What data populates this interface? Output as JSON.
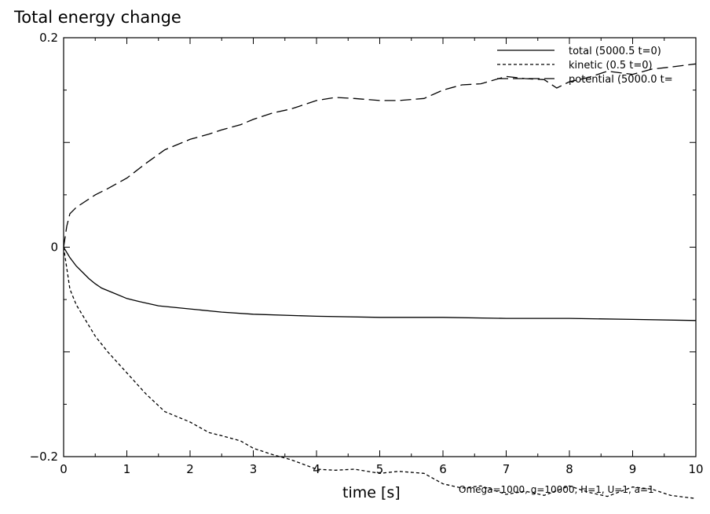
{
  "chart_data": {
    "type": "line",
    "title": "Total energy change",
    "xlabel": "time [s]",
    "ylabel": "",
    "xlim": [
      0,
      10
    ],
    "ylim": [
      -0.2,
      0.2
    ],
    "x_ticks": [
      "0",
      "1",
      "2",
      "3",
      "4",
      "5",
      "6",
      "7",
      "8",
      "9",
      "10"
    ],
    "y_ticks": [
      "-0.2",
      "0",
      "0.2"
    ],
    "y_tick_values": [
      -0.2,
      0,
      0.2
    ],
    "footnote": "Omega=1000, g=10000, H=1, U=1, a=1",
    "legend_position": "top-right",
    "grid": false,
    "series": [
      {
        "name": "total (5000.5 t=0)",
        "dash": "solid",
        "x": [
          0,
          0.1,
          0.2,
          0.3,
          0.4,
          0.5,
          0.6,
          0.8,
          1.0,
          1.2,
          1.5,
          2.0,
          2.5,
          3.0,
          4.0,
          5.0,
          6.0,
          7.0,
          8.0,
          9.0,
          10.0
        ],
        "y": [
          0,
          -0.01,
          -0.018,
          -0.024,
          -0.03,
          -0.035,
          -0.039,
          -0.044,
          -0.049,
          -0.052,
          -0.056,
          -0.059,
          -0.062,
          -0.064,
          -0.066,
          -0.067,
          -0.067,
          -0.068,
          -0.068,
          -0.069,
          -0.07
        ]
      },
      {
        "name": "kinetic (0.5 t=0)",
        "dash": "short",
        "x": [
          0,
          0.05,
          0.1,
          0.2,
          0.3,
          0.5,
          0.7,
          1.0,
          1.3,
          1.6,
          2.0,
          2.3,
          2.5,
          2.8,
          3.0,
          3.3,
          3.6,
          4.0,
          4.3,
          4.6,
          5.0,
          5.3,
          5.7,
          6.0,
          6.3,
          6.6,
          7.0,
          7.3,
          7.6,
          8.0,
          8.3,
          8.6,
          9.0,
          9.3,
          9.6,
          10.0
        ],
        "y": [
          0,
          -0.02,
          -0.04,
          -0.055,
          -0.065,
          -0.085,
          -0.1,
          -0.12,
          -0.14,
          -0.157,
          -0.167,
          -0.177,
          -0.18,
          -0.185,
          -0.192,
          -0.198,
          -0.203,
          -0.212,
          -0.213,
          -0.212,
          -0.216,
          -0.214,
          -0.216,
          -0.226,
          -0.23,
          -0.228,
          -0.236,
          -0.233,
          -0.237,
          -0.228,
          -0.234,
          -0.238,
          -0.229,
          -0.231,
          -0.237,
          -0.24
        ]
      },
      {
        "name": "potential (5000.0 t=",
        "dash": "long",
        "x": [
          0,
          0.05,
          0.1,
          0.2,
          0.3,
          0.5,
          0.7,
          1.0,
          1.3,
          1.6,
          2.0,
          2.3,
          2.5,
          2.8,
          3.0,
          3.3,
          3.6,
          4.0,
          4.3,
          4.6,
          5.0,
          5.3,
          5.7,
          6.0,
          6.3,
          6.6,
          7.0,
          7.3,
          7.6,
          7.8,
          8.0,
          8.3,
          8.6,
          9.0,
          9.3,
          9.6,
          10.0
        ],
        "y": [
          0,
          0.02,
          0.032,
          0.038,
          0.042,
          0.05,
          0.056,
          0.066,
          0.08,
          0.093,
          0.103,
          0.108,
          0.112,
          0.117,
          0.122,
          0.128,
          0.132,
          0.14,
          0.143,
          0.142,
          0.14,
          0.14,
          0.142,
          0.15,
          0.155,
          0.156,
          0.163,
          0.161,
          0.16,
          0.152,
          0.158,
          0.162,
          0.168,
          0.165,
          0.17,
          0.172,
          0.175
        ]
      }
    ]
  }
}
